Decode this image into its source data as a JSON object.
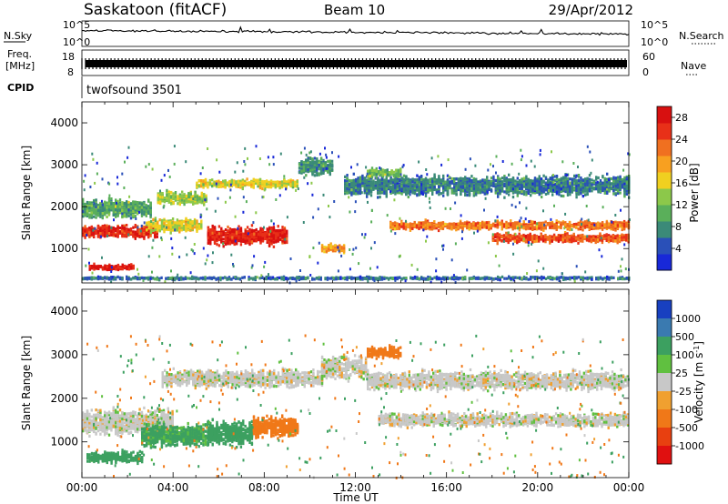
{
  "header": {
    "station": "Saskatoon (fitACF)",
    "beam": "Beam 10",
    "date": "29/Apr/2012"
  },
  "noise_panel": {
    "left_label": "N.Sky",
    "right_label": "N.Search",
    "left_ticks": [
      "10^5",
      "10^0"
    ],
    "right_ticks": [
      "10^5",
      "10^0"
    ]
  },
  "freq_panel": {
    "left_label_1": "Freq.",
    "left_label_2": "[MHz]",
    "right_label": "Nave",
    "left_ticks": [
      "18",
      "8"
    ],
    "right_ticks": [
      "60",
      "0"
    ],
    "frequency_mhz": 11.5
  },
  "cpid": {
    "label": "CPID",
    "value": "twofsound 3501"
  },
  "x_axis": {
    "label": "Time UT",
    "ticks": [
      "00:00",
      "04:00",
      "08:00",
      "12:00",
      "16:00",
      "20:00",
      "00:00"
    ]
  },
  "colors": {
    "power_scale": [
      "#1828d8",
      "#2a50b8",
      "#3b8a78",
      "#5aaf5a",
      "#8cc84a",
      "#f0d020",
      "#f8a020",
      "#f07020",
      "#e83018",
      "#d81010"
    ],
    "velocity_scale": [
      "#1840c0",
      "#3a7ab0",
      "#3ca060",
      "#60c040",
      "#c8c8c8",
      "#f0a030",
      "#f07818",
      "#e84010",
      "#e01010"
    ]
  },
  "chart_data": [
    {
      "type": "heatmap",
      "panel": "power",
      "xlabel": "",
      "ylabel": "Slant Range [km]",
      "xlim": [
        "00:00",
        "24:00"
      ],
      "ylim": [
        180,
        4500
      ],
      "yticks": [
        1000,
        2000,
        3000,
        4000
      ],
      "colorbar": {
        "label": "Power [dB]",
        "ticks": [
          4,
          8,
          12,
          16,
          20,
          24,
          28
        ],
        "range": [
          0,
          30
        ]
      },
      "bands": [
        {
          "t_start": 0.0,
          "t_end": 3.3,
          "range_center": 1400,
          "range_width": 350,
          "level": 26
        },
        {
          "t_start": 0.0,
          "t_end": 3.0,
          "range_center": 1950,
          "range_width": 500,
          "level": 10
        },
        {
          "t_start": 0.3,
          "t_end": 2.3,
          "range_center": 550,
          "range_width": 160,
          "level": 28
        },
        {
          "t_start": 2.8,
          "t_end": 5.2,
          "range_center": 1550,
          "range_width": 350,
          "level": 16
        },
        {
          "t_start": 3.3,
          "t_end": 5.5,
          "range_center": 2200,
          "range_width": 350,
          "level": 14
        },
        {
          "t_start": 5.5,
          "t_end": 9.0,
          "range_center": 1300,
          "range_width": 500,
          "level": 27
        },
        {
          "t_start": 5.0,
          "t_end": 9.5,
          "range_center": 2550,
          "range_width": 250,
          "level": 16
        },
        {
          "t_start": 9.5,
          "t_end": 11.0,
          "range_center": 2950,
          "range_width": 450,
          "level": 8
        },
        {
          "t_start": 10.5,
          "t_end": 11.5,
          "range_center": 1000,
          "range_width": 250,
          "level": 20
        },
        {
          "t_start": 11.5,
          "t_end": 24.0,
          "range_center": 2500,
          "range_width": 550,
          "level": 7
        },
        {
          "t_start": 12.5,
          "t_end": 14.0,
          "range_center": 2800,
          "range_width": 250,
          "level": 12
        },
        {
          "t_start": 13.5,
          "t_end": 24.0,
          "range_center": 1550,
          "range_width": 250,
          "level": 22
        },
        {
          "t_start": 18.0,
          "t_end": 24.0,
          "range_center": 1250,
          "range_width": 250,
          "level": 24
        },
        {
          "t_start": 0.0,
          "t_end": 24.0,
          "range_center": 290,
          "range_width": 80,
          "level": 6
        }
      ]
    },
    {
      "type": "heatmap",
      "panel": "velocity",
      "xlabel": "Time UT",
      "ylabel": "Slant Range [km]",
      "xlim": [
        "00:00",
        "24:00"
      ],
      "ylim": [
        180,
        4500
      ],
      "yticks": [
        1000,
        2000,
        3000,
        4000
      ],
      "colorbar": {
        "label": "Velocity [m s^-1]",
        "ticks": [
          "1000",
          "500",
          "100",
          "25",
          "-25",
          "-100",
          "-500",
          "-1000"
        ]
      },
      "bands": [
        {
          "t_start": 0.0,
          "t_end": 4.0,
          "range_center": 1450,
          "range_width": 650,
          "level": 0
        },
        {
          "t_start": 0.2,
          "t_end": 2.6,
          "range_center": 650,
          "range_width": 300,
          "level": 150
        },
        {
          "t_start": 2.6,
          "t_end": 5.5,
          "range_center": 1150,
          "range_width": 600,
          "level": 120
        },
        {
          "t_start": 5.5,
          "t_end": 7.5,
          "range_center": 1200,
          "range_width": 650,
          "level": 400
        },
        {
          "t_start": 7.5,
          "t_end": 9.5,
          "range_center": 1350,
          "range_width": 550,
          "level": -250
        },
        {
          "t_start": 3.5,
          "t_end": 10.5,
          "range_center": 2450,
          "range_width": 450,
          "level": 0
        },
        {
          "t_start": 10.5,
          "t_end": 12.5,
          "range_center": 2700,
          "range_width": 600,
          "level": 0
        },
        {
          "t_start": 12.5,
          "t_end": 24.0,
          "range_center": 2400,
          "range_width": 500,
          "level": 0
        },
        {
          "t_start": 13.0,
          "t_end": 24.0,
          "range_center": 1500,
          "range_width": 350,
          "level": 0
        },
        {
          "t_start": 12.5,
          "t_end": 14.0,
          "range_center": 3050,
          "range_width": 300,
          "level": -150
        }
      ]
    }
  ]
}
